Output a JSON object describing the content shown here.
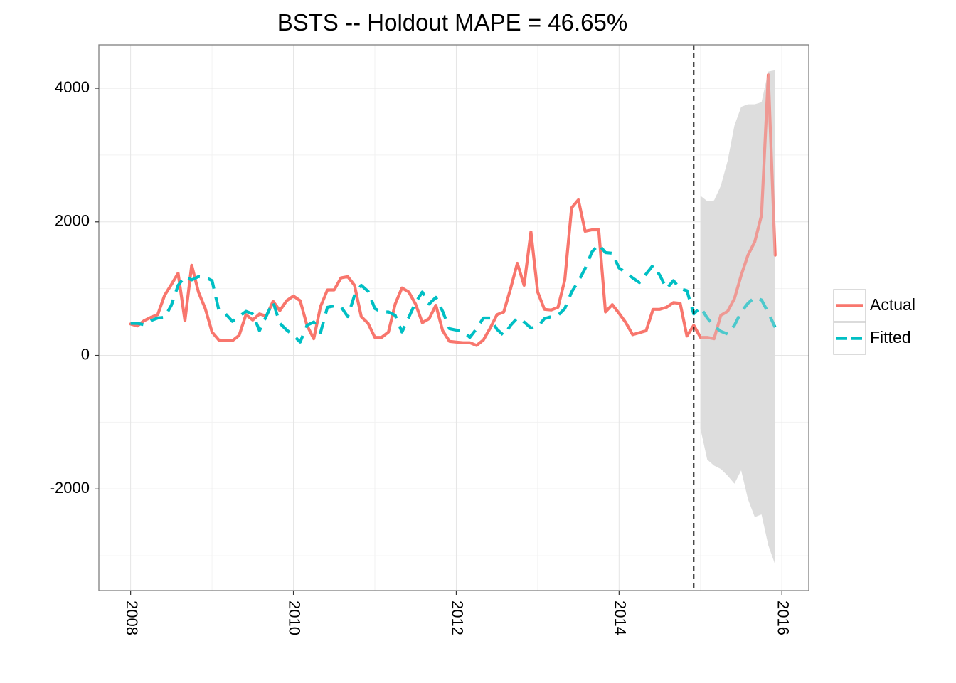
{
  "chart_data": {
    "type": "line",
    "title": "BSTS -- Holdout MAPE = 46.65%",
    "xlabel": "",
    "ylabel": "",
    "xlim": [
      2007.61,
      2016.33
    ],
    "ylim": [
      -3520,
      4650
    ],
    "x_ticks": [
      2008,
      2010,
      2012,
      2014,
      2016
    ],
    "x_tick_labels": [
      "2008",
      "2010",
      "2012",
      "2014",
      "2016"
    ],
    "y_ticks": [
      -2000,
      0,
      2000,
      4000
    ],
    "y_tick_labels": [
      "-2000",
      "0",
      "2000",
      "4000"
    ],
    "grid": true,
    "legend_position": "right",
    "holdout_start": 2014.917,
    "series": [
      {
        "name": "Actual",
        "color": "#F8766D",
        "style": "solid",
        "x": [
          2008.0,
          2008.083,
          2008.167,
          2008.25,
          2008.333,
          2008.417,
          2008.5,
          2008.583,
          2008.667,
          2008.75,
          2008.833,
          2008.917,
          2009.0,
          2009.083,
          2009.167,
          2009.25,
          2009.333,
          2009.417,
          2009.5,
          2009.583,
          2009.667,
          2009.75,
          2009.833,
          2009.917,
          2010.0,
          2010.083,
          2010.167,
          2010.25,
          2010.333,
          2010.417,
          2010.5,
          2010.583,
          2010.667,
          2010.75,
          2010.833,
          2010.917,
          2011.0,
          2011.083,
          2011.167,
          2011.25,
          2011.333,
          2011.417,
          2011.5,
          2011.583,
          2011.667,
          2011.75,
          2011.833,
          2011.917,
          2012.0,
          2012.083,
          2012.167,
          2012.25,
          2012.333,
          2012.417,
          2012.5,
          2012.583,
          2012.667,
          2012.75,
          2012.833,
          2012.917,
          2013.0,
          2013.083,
          2013.167,
          2013.25,
          2013.333,
          2013.417,
          2013.5,
          2013.583,
          2013.667,
          2013.75,
          2013.833,
          2013.917,
          2014.0,
          2014.083,
          2014.167,
          2014.25,
          2014.333,
          2014.417,
          2014.5,
          2014.583,
          2014.667,
          2014.75,
          2014.833,
          2014.917,
          2015.0,
          2015.083,
          2015.167,
          2015.25,
          2015.333,
          2015.417,
          2015.5,
          2015.583,
          2015.667,
          2015.75,
          2015.833,
          2015.917
        ],
        "y": [
          470,
          440,
          520,
          570,
          610,
          900,
          1060,
          1230,
          520,
          1350,
          950,
          700,
          350,
          230,
          220,
          220,
          300,
          610,
          530,
          620,
          590,
          810,
          670,
          820,
          890,
          820,
          450,
          250,
          730,
          980,
          980,
          1160,
          1180,
          1050,
          580,
          480,
          270,
          270,
          350,
          770,
          1010,
          950,
          770,
          490,
          550,
          750,
          370,
          210,
          200,
          190,
          190,
          150,
          230,
          410,
          610,
          650,
          1000,
          1380,
          1050,
          1850,
          950,
          690,
          680,
          720,
          1130,
          2210,
          2330,
          1860,
          1880,
          1880,
          650,
          760,
          630,
          490,
          310,
          340,
          370,
          690,
          690,
          720,
          790,
          780,
          290,
          450,
          270,
          270,
          250,
          600,
          660,
          850,
          1200,
          1500,
          1700,
          2100,
          4200,
          1500
        ]
      },
      {
        "name": "Fitted",
        "color": "#00BFC4",
        "style": "dashed",
        "x": [
          2008.0,
          2008.083,
          2008.167,
          2008.25,
          2008.333,
          2008.417,
          2008.5,
          2008.583,
          2008.667,
          2008.75,
          2008.833,
          2008.917,
          2009.0,
          2009.083,
          2009.167,
          2009.25,
          2009.333,
          2009.417,
          2009.5,
          2009.583,
          2009.667,
          2009.75,
          2009.833,
          2009.917,
          2010.0,
          2010.083,
          2010.167,
          2010.25,
          2010.333,
          2010.417,
          2010.5,
          2010.583,
          2010.667,
          2010.75,
          2010.833,
          2010.917,
          2011.0,
          2011.083,
          2011.167,
          2011.25,
          2011.333,
          2011.417,
          2011.5,
          2011.583,
          2011.667,
          2011.75,
          2011.833,
          2011.917,
          2012.0,
          2012.083,
          2012.167,
          2012.25,
          2012.333,
          2012.417,
          2012.5,
          2012.583,
          2012.667,
          2012.75,
          2012.833,
          2012.917,
          2013.0,
          2013.083,
          2013.167,
          2013.25,
          2013.333,
          2013.417,
          2013.5,
          2013.583,
          2013.667,
          2013.75,
          2013.833,
          2013.917,
          2014.0,
          2014.083,
          2014.167,
          2014.25,
          2014.333,
          2014.417,
          2014.5,
          2014.583,
          2014.667,
          2014.75,
          2014.833,
          2014.917,
          2015.0,
          2015.083,
          2015.167,
          2015.25,
          2015.333,
          2015.417,
          2015.5,
          2015.583,
          2015.667,
          2015.75,
          2015.833,
          2015.917
        ],
        "y": [
          480,
          480,
          460,
          520,
          560,
          570,
          750,
          1050,
          1180,
          1130,
          1180,
          1170,
          1120,
          680,
          620,
          510,
          580,
          660,
          620,
          370,
          590,
          800,
          480,
          380,
          300,
          200,
          450,
          500,
          340,
          720,
          740,
          730,
          580,
          900,
          1050,
          960,
          700,
          650,
          650,
          600,
          350,
          570,
          790,
          950,
          770,
          870,
          660,
          400,
          380,
          360,
          270,
          400,
          560,
          560,
          390,
          300,
          450,
          560,
          500,
          410,
          430,
          550,
          580,
          600,
          700,
          950,
          1110,
          1300,
          1550,
          1660,
          1540,
          1530,
          1310,
          1240,
          1160,
          1090,
          1220,
          1350,
          1200,
          1000,
          1120,
          1000,
          970,
          620,
          720,
          560,
          440,
          360,
          320,
          450,
          650,
          780,
          870,
          830,
          640,
          420
        ]
      }
    ],
    "ribbon": {
      "name": "prediction interval",
      "color": "#DDDDDD",
      "x": [
        2015.0,
        2015.083,
        2015.167,
        2015.25,
        2015.333,
        2015.417,
        2015.5,
        2015.583,
        2015.667,
        2015.75,
        2015.833,
        2015.917
      ],
      "upper": [
        2390,
        2310,
        2320,
        2540,
        2910,
        3440,
        3720,
        3760,
        3760,
        3790,
        4250,
        4270
      ],
      "lower": [
        -1100,
        -1560,
        -1650,
        -1700,
        -1800,
        -1920,
        -1720,
        -2150,
        -2420,
        -2380,
        -2840,
        -3130
      ]
    }
  }
}
